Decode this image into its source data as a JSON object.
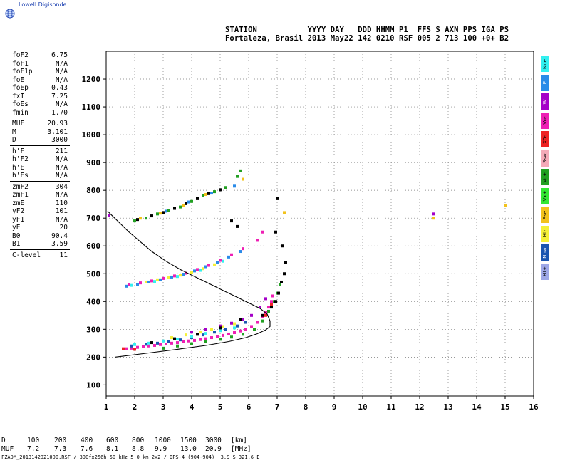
{
  "app": {
    "name": "Lowell Digisonde"
  },
  "header": {
    "line1": "STATION           YYYY DAY   DDD HHMM P1  FFS S AXN PPS IGA PS",
    "line2": "Fortaleza, Brasil 2013 May22 142 0210 RSF 005 2 713 100 +0+ B2"
  },
  "params": [
    {
      "label": "foF2",
      "value": "6.75"
    },
    {
      "label": "foF1",
      "value": "N/A"
    },
    {
      "label": "foF1p",
      "value": "N/A"
    },
    {
      "label": "foE",
      "value": "N/A"
    },
    {
      "label": "foEp",
      "value": "0.43"
    },
    {
      "label": "fxI",
      "value": "7.25"
    },
    {
      "label": "foEs",
      "value": "N/A"
    },
    {
      "label": "fmin",
      "value": "1.70"
    },
    {
      "divider": true
    },
    {
      "label": "MUF",
      "value": "20.93"
    },
    {
      "label": "M",
      "value": "3.101"
    },
    {
      "label": "D",
      "value": "3000"
    },
    {
      "divider": true
    },
    {
      "label": "h'F",
      "value": "211"
    },
    {
      "label": "h'F2",
      "value": "N/A"
    },
    {
      "label": "h'E",
      "value": "N/A"
    },
    {
      "label": "h'Es",
      "value": "N/A"
    },
    {
      "divider": true
    },
    {
      "label": "zmF2",
      "value": "304"
    },
    {
      "label": "zmF1",
      "value": "N/A"
    },
    {
      "label": "zmE",
      "value": "110"
    },
    {
      "label": "yF2",
      "value": "101"
    },
    {
      "label": "yF1",
      "value": "N/A"
    },
    {
      "label": "yE",
      "value": "20"
    },
    {
      "label": "B0",
      "value": "90.4"
    },
    {
      "label": "B1",
      "value": "3.59"
    },
    {
      "divider": true
    },
    {
      "label": "C-level",
      "value": "11"
    }
  ],
  "legend": [
    {
      "label": "Nne",
      "color": "#33f0f0",
      "text_color": "#000000"
    },
    {
      "label": "E",
      "color": "#2a8be8",
      "text_color": "#ffffff"
    },
    {
      "label": "W",
      "color": "#a400c8",
      "text_color": "#ffffff"
    },
    {
      "label": "Vo-",
      "color": "#ee1fb4",
      "text_color": "#000000"
    },
    {
      "label": "X0-",
      "color": "#ee2222",
      "text_color": "#000000"
    },
    {
      "label": "Ssw",
      "color": "#f4aab8",
      "text_color": "#000000"
    },
    {
      "label": "Vo+",
      "color": "#22a022",
      "text_color": "#000000"
    },
    {
      "label": "Vx+",
      "color": "#33e833",
      "text_color": "#000000"
    },
    {
      "label": "Sse",
      "color": "#f2c21c",
      "text_color": "#000000"
    },
    {
      "label": "Ht-",
      "color": "#f4f038",
      "text_color": "#000000"
    },
    {
      "label": "Nnw",
      "color": "#1a55b0",
      "text_color": "#ffffff"
    },
    {
      "label": "Ht+",
      "color": "#9ea8e8",
      "text_color": "#000000"
    }
  ],
  "chart_data": {
    "type": "scatter",
    "title": "",
    "xlabel": "",
    "ylabel": "",
    "xlim": [
      1,
      16
    ],
    "ylim": [
      60,
      1300
    ],
    "x_ticks": [
      1,
      2,
      3,
      4,
      5,
      6,
      7,
      8,
      9,
      10,
      11,
      12,
      13,
      14,
      15,
      16
    ],
    "y_ticks": [
      100,
      200,
      300,
      400,
      500,
      600,
      700,
      800,
      900,
      1000,
      1100,
      1200
    ],
    "grid": true,
    "series": [
      {
        "color": "#ee1fb4",
        "points": [
          [
            1.7,
            230
          ],
          [
            1.9,
            232
          ],
          [
            2.1,
            235
          ],
          [
            2.3,
            238
          ],
          [
            2.5,
            240
          ],
          [
            2.7,
            242
          ],
          [
            2.9,
            245
          ],
          [
            3.1,
            247
          ],
          [
            3.3,
            250
          ],
          [
            3.5,
            252
          ],
          [
            3.7,
            255
          ],
          [
            3.9,
            258
          ],
          [
            4.1,
            260
          ],
          [
            4.3,
            263
          ],
          [
            4.5,
            266
          ],
          [
            4.7,
            270
          ],
          [
            4.9,
            274
          ],
          [
            5.1,
            278
          ],
          [
            5.3,
            283
          ],
          [
            5.5,
            288
          ],
          [
            5.7,
            294
          ],
          [
            5.9,
            300
          ],
          [
            6.1,
            310
          ],
          [
            6.3,
            325
          ],
          [
            6.5,
            345
          ],
          [
            6.6,
            360
          ],
          [
            6.7,
            380
          ],
          [
            6.8,
            400
          ],
          [
            6.85,
            420
          ]
        ]
      },
      {
        "color": "#22a022",
        "points": [
          [
            3.0,
            232
          ],
          [
            3.5,
            240
          ],
          [
            4.0,
            248
          ],
          [
            4.5,
            256
          ],
          [
            5.0,
            264
          ],
          [
            5.4,
            272
          ],
          [
            5.8,
            282
          ],
          [
            6.2,
            300
          ],
          [
            6.5,
            330
          ],
          [
            6.7,
            365
          ],
          [
            6.9,
            400
          ],
          [
            7.0,
            430
          ],
          [
            7.1,
            460
          ]
        ]
      },
      {
        "color": "#1a55b0",
        "points": [
          [
            1.9,
            240
          ],
          [
            2.4,
            246
          ],
          [
            2.8,
            250
          ],
          [
            3.2,
            255
          ],
          [
            3.6,
            262
          ],
          [
            4.0,
            270
          ],
          [
            4.4,
            280
          ],
          [
            4.8,
            290
          ],
          [
            5.2,
            300
          ],
          [
            5.6,
            312
          ],
          [
            5.9,
            325
          ]
        ]
      },
      {
        "color": "#33f0f0",
        "points": [
          [
            2.0,
            245
          ],
          [
            2.5,
            250
          ],
          [
            3.0,
            258
          ],
          [
            3.5,
            265
          ],
          [
            4.0,
            275
          ],
          [
            4.5,
            285
          ],
          [
            5.0,
            295
          ],
          [
            5.5,
            305
          ]
        ]
      },
      {
        "color": "#f4f038",
        "points": [
          [
            3.3,
            270
          ],
          [
            3.8,
            280
          ],
          [
            4.3,
            290
          ],
          [
            4.7,
            300
          ],
          [
            5.1,
            310
          ],
          [
            5.5,
            320
          ]
        ]
      },
      {
        "color": "#a400c8",
        "points": [
          [
            4.0,
            290
          ],
          [
            4.5,
            300
          ],
          [
            5.0,
            312
          ],
          [
            5.4,
            322
          ],
          [
            5.8,
            335
          ],
          [
            6.1,
            350
          ],
          [
            6.4,
            380
          ],
          [
            6.6,
            410
          ]
        ]
      },
      {
        "color": "#000000",
        "points": [
          [
            2.6,
            252
          ],
          [
            3.4,
            266
          ],
          [
            4.2,
            282
          ],
          [
            5.0,
            305
          ],
          [
            5.7,
            335
          ],
          [
            6.5,
            350
          ],
          [
            6.8,
            380
          ],
          [
            6.95,
            400
          ],
          [
            7.05,
            430
          ],
          [
            7.15,
            470
          ],
          [
            7.25,
            500
          ],
          [
            7.3,
            540
          ],
          [
            7.2,
            600
          ],
          [
            6.95,
            650
          ],
          [
            7.0,
            770
          ],
          [
            5.4,
            690
          ],
          [
            5.6,
            670
          ]
        ]
      },
      {
        "color": "#ee2222",
        "points": [
          [
            1.6,
            230
          ],
          [
            2.0,
            228
          ],
          [
            6.6,
            350
          ],
          [
            6.8,
            390
          ]
        ]
      },
      {
        "color": "#2a8be8",
        "points": [
          [
            1.7,
            455
          ],
          [
            2.1,
            462
          ],
          [
            2.5,
            470
          ],
          [
            2.9,
            478
          ],
          [
            3.3,
            488
          ],
          [
            3.7,
            498
          ],
          [
            4.1,
            510
          ],
          [
            4.5,
            525
          ],
          [
            4.9,
            540
          ],
          [
            5.3,
            560
          ],
          [
            5.7,
            580
          ]
        ]
      },
      {
        "color": "#ee1fb4",
        "points": [
          [
            1.8,
            460
          ],
          [
            2.2,
            467
          ],
          [
            2.6,
            474
          ],
          [
            3.0,
            483
          ],
          [
            3.4,
            492
          ],
          [
            3.8,
            502
          ],
          [
            4.2,
            515
          ],
          [
            4.6,
            530
          ],
          [
            5.0,
            548
          ],
          [
            5.4,
            568
          ],
          [
            5.8,
            590
          ],
          [
            6.3,
            620
          ],
          [
            6.5,
            650
          ]
        ]
      },
      {
        "color": "#f4f038",
        "points": [
          [
            2.4,
            470
          ],
          [
            2.8,
            478
          ],
          [
            3.2,
            486
          ],
          [
            3.6,
            495
          ],
          [
            4.0,
            505
          ],
          [
            4.4,
            518
          ],
          [
            4.8,
            532
          ]
        ]
      },
      {
        "color": "#33f0f0",
        "points": [
          [
            1.9,
            458
          ],
          [
            2.7,
            472
          ],
          [
            3.5,
            490
          ],
          [
            4.3,
            512
          ],
          [
            5.1,
            545
          ]
        ]
      },
      {
        "color": "#22a022",
        "points": [
          [
            2.0,
            690
          ],
          [
            2.4,
            700
          ],
          [
            2.8,
            715
          ],
          [
            3.2,
            728
          ],
          [
            3.6,
            740
          ],
          [
            4.0,
            760
          ],
          [
            4.4,
            780
          ],
          [
            4.8,
            795
          ],
          [
            5.2,
            810
          ],
          [
            5.6,
            850
          ],
          [
            5.7,
            870
          ]
        ]
      },
      {
        "color": "#000000",
        "points": [
          [
            2.1,
            695
          ],
          [
            2.6,
            708
          ],
          [
            3.0,
            720
          ],
          [
            3.4,
            735
          ],
          [
            3.8,
            752
          ],
          [
            4.2,
            770
          ],
          [
            4.6,
            788
          ],
          [
            5.0,
            802
          ]
        ]
      },
      {
        "color": "#f2c21c",
        "points": [
          [
            2.2,
            700
          ],
          [
            2.9,
            718
          ],
          [
            3.7,
            745
          ],
          [
            4.5,
            785
          ],
          [
            5.8,
            840
          ],
          [
            7.25,
            720
          ],
          [
            12.5,
            700
          ],
          [
            15.0,
            745
          ]
        ]
      },
      {
        "color": "#2a8be8",
        "points": [
          [
            3.1,
            725
          ],
          [
            3.9,
            758
          ],
          [
            4.7,
            790
          ],
          [
            5.5,
            815
          ]
        ]
      },
      {
        "color": "#a400c8",
        "points": [
          [
            12.5,
            715
          ],
          [
            1.1,
            710
          ]
        ]
      }
    ],
    "trace": {
      "color": "#000000",
      "points": [
        [
          1.3,
          200
        ],
        [
          2.5,
          215
        ],
        [
          3.5,
          228
        ],
        [
          4.5,
          242
        ],
        [
          5.3,
          256
        ],
        [
          5.9,
          270
        ],
        [
          6.3,
          284
        ],
        [
          6.6,
          298
        ],
        [
          6.75,
          310
        ],
        [
          6.75,
          330
        ],
        [
          6.65,
          355
        ],
        [
          6.4,
          375
        ],
        [
          6.0,
          395
        ],
        [
          5.6,
          415
        ],
        [
          5.1,
          440
        ],
        [
          4.6,
          465
        ],
        [
          4.1,
          490
        ],
        [
          3.6,
          515
        ],
        [
          3.1,
          545
        ],
        [
          2.6,
          580
        ],
        [
          2.2,
          615
        ],
        [
          1.8,
          650
        ],
        [
          1.5,
          680
        ],
        [
          1.2,
          710
        ],
        [
          1.05,
          725
        ]
      ]
    }
  },
  "distance_table": {
    "d_label": "D",
    "d_values": [
      "100",
      "200",
      "400",
      "600",
      "800",
      "1000",
      "1500",
      "3000"
    ],
    "d_unit": "[km]",
    "muf_label": "MUF",
    "muf_values": [
      "7.2",
      "7.3",
      "7.6",
      "8.1",
      "8.8",
      "9.9",
      "13.0",
      "20.9"
    ],
    "muf_unit": "[MHz]"
  },
  "footer": "FZA0M_2013142021000.RSF / 300fx256h 50 kHz 5.0 km 2x2 / DPS-4 (904-904)  3.9 S 321.6 E"
}
